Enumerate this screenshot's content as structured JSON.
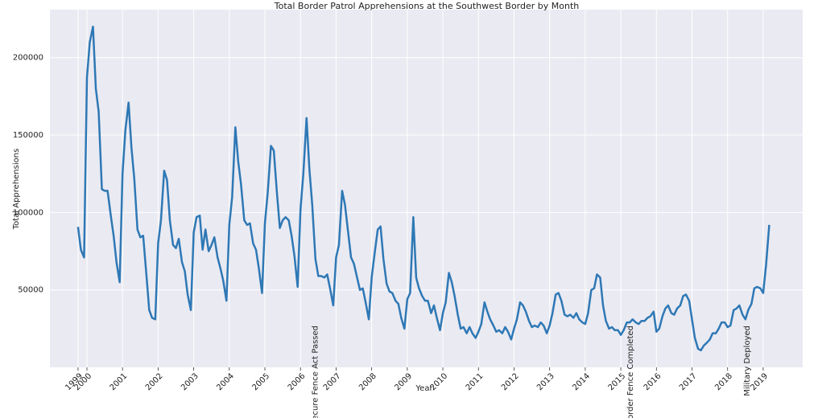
{
  "chart_data": {
    "type": "line",
    "title": "Total Border Patrol Apprehensions at the Southwest Border by Month",
    "x_label": "Year",
    "y_label": "Total Apprehensions",
    "color": "#2e78b5",
    "grid": true,
    "xlim": [
      1998.96,
      2020.11
    ],
    "ylim": [
      0,
      231000
    ],
    "xticks": [
      {
        "value": 1999.75,
        "label": "1999"
      },
      2000,
      2001,
      2002,
      2003,
      2004,
      2005,
      2006,
      2007,
      2008,
      2009,
      2010,
      2011,
      2012,
      2013,
      2014,
      2015,
      2016,
      2017,
      2018,
      2019
    ],
    "yticks": [
      50000,
      100000,
      150000,
      200000
    ],
    "annotations": [
      {
        "text": "Secure Fence Act Passed",
        "x": 2006.41
      },
      {
        "text": "Border Fence Completed",
        "x": 2015.27
      },
      {
        "text": "Military Deployed",
        "x": 2018.55
      }
    ],
    "x": [
      1999.75,
      1999.83,
      1999.92,
      2000,
      2000.08,
      2000.17,
      2000.25,
      2000.33,
      2000.42,
      2000.5,
      2000.58,
      2000.67,
      2000.75,
      2000.83,
      2000.92,
      2001,
      2001.08,
      2001.17,
      2001.25,
      2001.33,
      2001.42,
      2001.5,
      2001.58,
      2001.67,
      2001.75,
      2001.83,
      2001.92,
      2002,
      2002.08,
      2002.17,
      2002.25,
      2002.33,
      2002.42,
      2002.5,
      2002.58,
      2002.67,
      2002.75,
      2002.83,
      2002.92,
      2003,
      2003.08,
      2003.17,
      2003.25,
      2003.33,
      2003.42,
      2003.5,
      2003.58,
      2003.67,
      2003.75,
      2003.83,
      2003.92,
      2004,
      2004.08,
      2004.17,
      2004.25,
      2004.33,
      2004.42,
      2004.5,
      2004.58,
      2004.67,
      2004.75,
      2004.83,
      2004.92,
      2005,
      2005.08,
      2005.17,
      2005.25,
      2005.33,
      2005.42,
      2005.5,
      2005.58,
      2005.67,
      2005.75,
      2005.83,
      2005.92,
      2006,
      2006.08,
      2006.17,
      2006.25,
      2006.33,
      2006.42,
      2006.5,
      2006.58,
      2006.67,
      2006.75,
      2006.83,
      2006.92,
      2007,
      2007.08,
      2007.17,
      2007.25,
      2007.33,
      2007.42,
      2007.5,
      2007.58,
      2007.67,
      2007.75,
      2007.83,
      2007.92,
      2008,
      2008.08,
      2008.17,
      2008.25,
      2008.33,
      2008.42,
      2008.5,
      2008.58,
      2008.67,
      2008.75,
      2008.83,
      2008.92,
      2009,
      2009.08,
      2009.17,
      2009.25,
      2009.33,
      2009.42,
      2009.5,
      2009.58,
      2009.67,
      2009.75,
      2009.83,
      2009.92,
      2010,
      2010.08,
      2010.17,
      2010.25,
      2010.33,
      2010.42,
      2010.5,
      2010.58,
      2010.67,
      2010.75,
      2010.83,
      2010.92,
      2011,
      2011.08,
      2011.17,
      2011.25,
      2011.33,
      2011.42,
      2011.5,
      2011.58,
      2011.67,
      2011.75,
      2011.83,
      2011.92,
      2012,
      2012.08,
      2012.17,
      2012.25,
      2012.33,
      2012.42,
      2012.5,
      2012.58,
      2012.67,
      2012.75,
      2012.83,
      2012.92,
      2013,
      2013.08,
      2013.17,
      2013.25,
      2013.33,
      2013.42,
      2013.5,
      2013.58,
      2013.67,
      2013.75,
      2013.83,
      2013.92,
      2014,
      2014.08,
      2014.17,
      2014.25,
      2014.33,
      2014.42,
      2014.5,
      2014.58,
      2014.67,
      2014.75,
      2014.83,
      2014.92,
      2015,
      2015.08,
      2015.17,
      2015.25,
      2015.33,
      2015.42,
      2015.5,
      2015.58,
      2015.67,
      2015.75,
      2015.83,
      2015.92,
      2016,
      2016.08,
      2016.17,
      2016.25,
      2016.33,
      2016.42,
      2016.5,
      2016.58,
      2016.67,
      2016.75,
      2016.83,
      2016.92,
      2017,
      2017.08,
      2017.17,
      2017.25,
      2017.33,
      2017.42,
      2017.5,
      2017.58,
      2017.67,
      2017.75,
      2017.83,
      2017.92,
      2018,
      2018.08,
      2018.17,
      2018.25,
      2018.33,
      2018.42,
      2018.5,
      2018.58,
      2018.67,
      2018.75,
      2018.83,
      2018.92,
      2019,
      2019.08,
      2019.17
    ],
    "values": [
      90700,
      76000,
      71000,
      187000,
      210000,
      220000,
      180000,
      165000,
      115000,
      114000,
      114000,
      98000,
      85000,
      68000,
      55000,
      125000,
      153000,
      171000,
      142000,
      122000,
      89000,
      84000,
      85000,
      60000,
      37000,
      32000,
      31000,
      80000,
      95000,
      127000,
      121000,
      95000,
      79000,
      77000,
      83000,
      68000,
      62000,
      47000,
      37000,
      87000,
      97000,
      98000,
      76000,
      89000,
      75000,
      79000,
      84000,
      71000,
      64000,
      56000,
      43000,
      92000,
      110000,
      155000,
      133000,
      118000,
      95000,
      92000,
      93000,
      80000,
      76000,
      64000,
      48000,
      93000,
      113000,
      143000,
      140000,
      115000,
      90000,
      95000,
      97000,
      95000,
      85000,
      72000,
      52000,
      102000,
      125000,
      161000,
      128000,
      105000,
      70000,
      59000,
      59000,
      58000,
      60000,
      51000,
      40000,
      71000,
      79000,
      114000,
      105000,
      89000,
      71000,
      67000,
      59000,
      50000,
      51000,
      42000,
      31000,
      58000,
      73000,
      89000,
      91000,
      70000,
      54000,
      49000,
      48000,
      43000,
      41000,
      32000,
      25000,
      44000,
      48000,
      97000,
      58000,
      51000,
      46000,
      43000,
      43000,
      35000,
      40000,
      32000,
      24000,
      35000,
      42000,
      61000,
      55000,
      46000,
      34000,
      25000,
      26000,
      22000,
      26000,
      22000,
      19000,
      23000,
      28000,
      42000,
      36000,
      31000,
      27000,
      23000,
      24000,
      22000,
      26000,
      23000,
      18000,
      25000,
      31000,
      42000,
      40000,
      36000,
      30000,
      26000,
      27000,
      26000,
      29000,
      27000,
      22000,
      27000,
      35000,
      47000,
      48000,
      43000,
      34000,
      33000,
      34000,
      32000,
      35000,
      31000,
      29000,
      28000,
      35000,
      50000,
      51000,
      60000,
      58000,
      40000,
      30000,
      25000,
      26000,
      24000,
      24000,
      21000,
      24000,
      29000,
      29000,
      31000,
      29000,
      28000,
      30000,
      30000,
      32000,
      33000,
      36000,
      23000,
      25000,
      33000,
      38000,
      40000,
      35000,
      34000,
      38000,
      40000,
      46000,
      47000,
      43000,
      31000,
      19000,
      12000,
      11000,
      14000,
      16000,
      18000,
      22000,
      22000,
      25000,
      29000,
      29000,
      26000,
      27000,
      37000,
      38000,
      40000,
      34000,
      31000,
      37000,
      41000,
      51000,
      52000,
      51000,
      48000,
      66000,
      92000
    ]
  }
}
